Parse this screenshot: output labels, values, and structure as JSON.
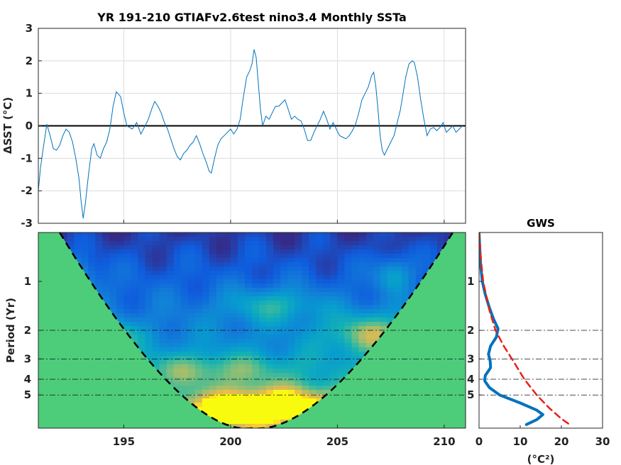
{
  "chart_data": [
    {
      "type": "line",
      "title": "YR 191-210 GTIAFv2.6test nino3.4 Monthly SSTa",
      "xlabel": "",
      "ylabel": "ΔSST (°C)",
      "xlim": [
        191.0,
        211.0
      ],
      "ylim": [
        -3,
        3
      ],
      "xticks": [
        195,
        200,
        205,
        210
      ],
      "xtick_labels": [
        "",
        "",
        "",
        ""
      ],
      "yticks": [
        -3,
        -2,
        -1,
        0,
        1,
        2,
        3
      ],
      "ytick_labels": [
        "-3",
        "-2",
        "-1",
        "0",
        "1",
        "2",
        "3"
      ],
      "grid": true,
      "zero_line": 0,
      "line_color": "#0072bd",
      "series": [
        {
          "name": "",
          "points": [
            [
              191.0,
              -2.0
            ],
            [
              191.1,
              -1.3
            ],
            [
              191.25,
              -0.6
            ],
            [
              191.4,
              0.05
            ],
            [
              191.55,
              -0.3
            ],
            [
              191.7,
              -0.7
            ],
            [
              191.85,
              -0.75
            ],
            [
              192.0,
              -0.6
            ],
            [
              192.15,
              -0.3
            ],
            [
              192.3,
              -0.1
            ],
            [
              192.45,
              -0.2
            ],
            [
              192.6,
              -0.5
            ],
            [
              192.75,
              -1.0
            ],
            [
              192.9,
              -1.6
            ],
            [
              193.0,
              -2.3
            ],
            [
              193.1,
              -2.85
            ],
            [
              193.2,
              -2.4
            ],
            [
              193.35,
              -1.5
            ],
            [
              193.5,
              -0.7
            ],
            [
              193.6,
              -0.55
            ],
            [
              193.75,
              -0.9
            ],
            [
              193.9,
              -1.0
            ],
            [
              194.05,
              -0.7
            ],
            [
              194.2,
              -0.5
            ],
            [
              194.35,
              -0.1
            ],
            [
              194.5,
              0.6
            ],
            [
              194.65,
              1.05
            ],
            [
              194.85,
              0.9
            ],
            [
              195.0,
              0.4
            ],
            [
              195.15,
              0.0
            ],
            [
              195.4,
              -0.1
            ],
            [
              195.6,
              0.1
            ],
            [
              195.8,
              -0.25
            ],
            [
              196.0,
              0.0
            ],
            [
              196.15,
              0.2
            ],
            [
              196.3,
              0.5
            ],
            [
              196.45,
              0.75
            ],
            [
              196.6,
              0.6
            ],
            [
              196.75,
              0.4
            ],
            [
              196.9,
              0.1
            ],
            [
              197.05,
              -0.1
            ],
            [
              197.2,
              -0.4
            ],
            [
              197.35,
              -0.7
            ],
            [
              197.5,
              -0.95
            ],
            [
              197.65,
              -1.05
            ],
            [
              197.8,
              -0.85
            ],
            [
              197.95,
              -0.75
            ],
            [
              198.1,
              -0.6
            ],
            [
              198.25,
              -0.5
            ],
            [
              198.4,
              -0.3
            ],
            [
              198.55,
              -0.55
            ],
            [
              198.7,
              -0.85
            ],
            [
              198.85,
              -1.1
            ],
            [
              199.0,
              -1.4
            ],
            [
              199.1,
              -1.45
            ],
            [
              199.25,
              -1.0
            ],
            [
              199.4,
              -0.6
            ],
            [
              199.55,
              -0.4
            ],
            [
              199.7,
              -0.3
            ],
            [
              199.85,
              -0.2
            ],
            [
              200.0,
              -0.1
            ],
            [
              200.15,
              -0.25
            ],
            [
              200.3,
              -0.1
            ],
            [
              200.45,
              0.2
            ],
            [
              200.6,
              0.9
            ],
            [
              200.75,
              1.5
            ],
            [
              200.9,
              1.7
            ],
            [
              201.0,
              1.9
            ],
            [
              201.1,
              2.35
            ],
            [
              201.2,
              2.1
            ],
            [
              201.3,
              1.3
            ],
            [
              201.4,
              0.5
            ],
            [
              201.5,
              0.0
            ],
            [
              201.65,
              0.3
            ],
            [
              201.8,
              0.2
            ],
            [
              201.95,
              0.4
            ],
            [
              202.1,
              0.6
            ],
            [
              202.25,
              0.6
            ],
            [
              202.4,
              0.7
            ],
            [
              202.55,
              0.8
            ],
            [
              202.7,
              0.5
            ],
            [
              202.85,
              0.2
            ],
            [
              203.0,
              0.3
            ],
            [
              203.15,
              0.2
            ],
            [
              203.3,
              0.15
            ],
            [
              203.45,
              -0.1
            ],
            [
              203.6,
              -0.45
            ],
            [
              203.75,
              -0.45
            ],
            [
              203.9,
              -0.2
            ],
            [
              204.05,
              0.0
            ],
            [
              204.2,
              0.2
            ],
            [
              204.35,
              0.45
            ],
            [
              204.5,
              0.2
            ],
            [
              204.65,
              -0.1
            ],
            [
              204.8,
              0.1
            ],
            [
              204.95,
              -0.1
            ],
            [
              205.1,
              -0.3
            ],
            [
              205.25,
              -0.35
            ],
            [
              205.4,
              -0.4
            ],
            [
              205.55,
              -0.3
            ],
            [
              205.7,
              -0.15
            ],
            [
              205.85,
              0.05
            ],
            [
              206.0,
              0.4
            ],
            [
              206.15,
              0.8
            ],
            [
              206.3,
              1.0
            ],
            [
              206.45,
              1.2
            ],
            [
              206.6,
              1.55
            ],
            [
              206.7,
              1.65
            ],
            [
              206.8,
              1.2
            ],
            [
              206.9,
              0.5
            ],
            [
              207.0,
              -0.3
            ],
            [
              207.1,
              -0.75
            ],
            [
              207.2,
              -0.9
            ],
            [
              207.35,
              -0.7
            ],
            [
              207.5,
              -0.5
            ],
            [
              207.65,
              -0.3
            ],
            [
              207.8,
              0.1
            ],
            [
              207.95,
              0.5
            ],
            [
              208.05,
              0.9
            ],
            [
              208.2,
              1.5
            ],
            [
              208.35,
              1.9
            ],
            [
              208.5,
              2.0
            ],
            [
              208.6,
              1.95
            ],
            [
              208.75,
              1.5
            ],
            [
              208.9,
              0.8
            ],
            [
              209.05,
              0.2
            ],
            [
              209.2,
              -0.3
            ],
            [
              209.35,
              -0.1
            ],
            [
              209.5,
              -0.05
            ],
            [
              209.65,
              -0.15
            ],
            [
              209.8,
              -0.05
            ],
            [
              209.95,
              0.1
            ],
            [
              210.1,
              -0.2
            ],
            [
              210.25,
              -0.1
            ],
            [
              210.4,
              0.0
            ],
            [
              210.55,
              -0.2
            ],
            [
              210.7,
              -0.1
            ],
            [
              210.85,
              0.0
            ]
          ]
        }
      ]
    },
    {
      "type": "heatmap",
      "title": "",
      "xlabel": "",
      "ylabel": "Period (Yr)",
      "xlim": [
        191.0,
        211.0
      ],
      "y_scale": "log2",
      "ylim": [
        0.5,
        8.0
      ],
      "xticks": [
        195,
        200,
        205,
        210
      ],
      "xtick_labels": [
        "195",
        "200",
        "205",
        "210"
      ],
      "yticks": [
        1,
        2,
        3,
        4,
        5
      ],
      "ytick_labels": [
        "1",
        "2",
        "3",
        "4",
        "5"
      ],
      "reference_periods": [
        2,
        3,
        4,
        5
      ],
      "colormap": "parula",
      "cone_of_influence_color": "#4dcc7a",
      "hot_spots": [
        {
          "x": 194.2,
          "period": 2.2,
          "strength": 0.9,
          "sx": 0.9,
          "sy": 0.22
        },
        {
          "x": 200.5,
          "period": 6.4,
          "strength": 1.0,
          "sx": 2.2,
          "sy": 0.22
        },
        {
          "x": 202.5,
          "period": 5.5,
          "strength": 0.85,
          "sx": 3.0,
          "sy": 0.25
        },
        {
          "x": 206.6,
          "period": 2.1,
          "strength": 0.85,
          "sx": 1.5,
          "sy": 0.3
        },
        {
          "x": 202.0,
          "period": 1.4,
          "strength": 0.6,
          "sx": 1.6,
          "sy": 0.25
        },
        {
          "x": 192.4,
          "period": 0.95,
          "strength": 0.65,
          "sx": 0.9,
          "sy": 0.3
        },
        {
          "x": 207.6,
          "period": 0.9,
          "strength": 0.6,
          "sx": 0.6,
          "sy": 0.25
        },
        {
          "x": 199.0,
          "period": 3.5,
          "strength": 0.55,
          "sx": 3.0,
          "sy": 0.25
        }
      ]
    },
    {
      "type": "line",
      "title": "GWS",
      "xlabel": "(°C²)",
      "ylabel": "",
      "xlim": [
        0,
        30
      ],
      "xticks": [
        0,
        10,
        20,
        30
      ],
      "xtick_labels": [
        "0",
        "10",
        "20",
        "30"
      ],
      "y_scale": "log2",
      "ylim": [
        0.5,
        8.0
      ],
      "yticks": [
        1,
        2,
        3,
        4,
        5
      ],
      "ytick_labels": [
        "1",
        "2",
        "3",
        "4",
        "5"
      ],
      "reference_periods": [
        2,
        3,
        4,
        5
      ],
      "series": [
        {
          "name": "",
          "style": "solid",
          "color": "#0072bd",
          "points": [
            [
              0.0,
              0.5
            ],
            [
              0.2,
              0.65
            ],
            [
              0.4,
              0.8
            ],
            [
              0.8,
              1.0
            ],
            [
              1.5,
              1.2
            ],
            [
              2.5,
              1.45
            ],
            [
              3.5,
              1.7
            ],
            [
              4.6,
              1.95
            ],
            [
              4.2,
              2.2
            ],
            [
              2.8,
              2.5
            ],
            [
              2.3,
              2.8
            ],
            [
              2.7,
              3.1
            ],
            [
              2.8,
              3.4
            ],
            [
              1.5,
              3.8
            ],
            [
              1.4,
              4.1
            ],
            [
              2.5,
              4.5
            ],
            [
              5.0,
              5.0
            ],
            [
              10.0,
              5.6
            ],
            [
              14.0,
              6.2
            ],
            [
              15.5,
              6.6
            ],
            [
              14.0,
              7.1
            ],
            [
              11.5,
              7.6
            ]
          ]
        },
        {
          "name": "",
          "style": "dashed",
          "color": "#e32119",
          "points": [
            [
              0.0,
              0.5
            ],
            [
              0.5,
              0.75
            ],
            [
              1.0,
              1.0
            ],
            [
              2.5,
              1.5
            ],
            [
              4.0,
              2.0
            ],
            [
              6.0,
              2.5
            ],
            [
              8.0,
              3.0
            ],
            [
              11.0,
              4.0
            ],
            [
              14.0,
              5.0
            ],
            [
              17.0,
              6.0
            ],
            [
              20.0,
              7.0
            ],
            [
              22.0,
              7.6
            ]
          ]
        }
      ]
    }
  ]
}
